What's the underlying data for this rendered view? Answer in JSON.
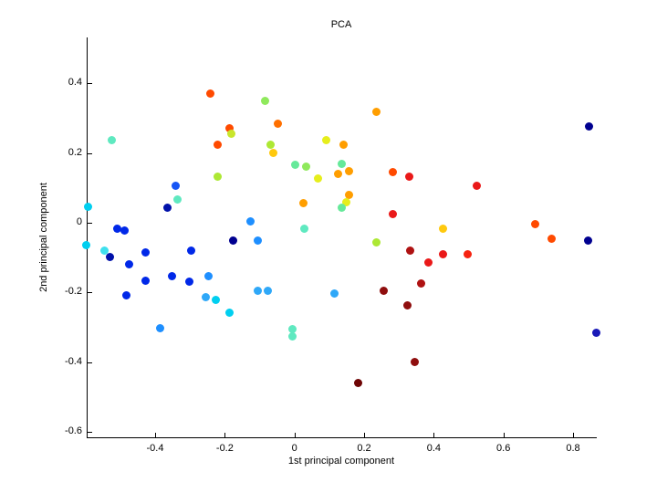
{
  "title": "PCA",
  "colors": {
    "axis": "#000000",
    "background": "#ffffff",
    "text": "#000000"
  },
  "chart_data": {
    "type": "scatter",
    "title": "PCA",
    "xlabel": "1st principal component",
    "ylabel": "2nd principal component",
    "xlim": [
      -0.594,
      0.868
    ],
    "ylim": [
      -0.615,
      0.531
    ],
    "x_ticks": [
      -0.4,
      -0.2,
      0,
      0.2,
      0.4,
      0.6,
      0.8
    ],
    "y_ticks": [
      0.4,
      0.2,
      0,
      -0.2,
      -0.4,
      -0.6
    ],
    "grid": false,
    "legend": "none",
    "colormap": "jet",
    "points": [
      [
        -0.241,
        0.369,
        "#FF4A00"
      ],
      [
        -0.084,
        0.348,
        "#8FE95C"
      ],
      [
        -0.047,
        0.285,
        "#FF7000"
      ],
      [
        -0.526,
        0.238,
        "#5FE9C0"
      ],
      [
        -0.186,
        0.272,
        "#FF4A00"
      ],
      [
        -0.181,
        0.254,
        "#C9E62C"
      ],
      [
        -0.22,
        0.225,
        "#FF4A00"
      ],
      [
        -0.068,
        0.225,
        "#ADE834"
      ],
      [
        -0.06,
        0.199,
        "#FFC90E"
      ],
      [
        0.092,
        0.238,
        "#E6EE1C"
      ],
      [
        0.141,
        0.223,
        "#FF9E00"
      ],
      [
        0.003,
        0.165,
        "#66E99A"
      ],
      [
        0.034,
        0.162,
        "#8FE95C"
      ],
      [
        0.136,
        0.168,
        "#66E99A"
      ],
      [
        0.126,
        0.141,
        "#FF9E00"
      ],
      [
        0.157,
        0.149,
        "#FF9E00"
      ],
      [
        0.068,
        0.126,
        "#E6EE1C"
      ],
      [
        -0.22,
        0.131,
        "#ADE834"
      ],
      [
        -0.34,
        0.107,
        "#1655F5"
      ],
      [
        -0.335,
        0.068,
        "#5FE9C0"
      ],
      [
        -0.364,
        0.042,
        "#0011AA"
      ],
      [
        -0.594,
        0.047,
        "#00CFF0"
      ],
      [
        -0.597,
        -0.063,
        "#00CFF0"
      ],
      [
        -0.51,
        -0.018,
        "#0028E8"
      ],
      [
        -0.489,
        -0.021,
        "#0028E8"
      ],
      [
        -0.126,
        0.003,
        "#1E8FFF"
      ],
      [
        -0.105,
        -0.052,
        "#1E8FFF"
      ],
      [
        -0.175,
        -0.05,
        "#000090"
      ],
      [
        0.026,
        0.055,
        "#FF9E00"
      ],
      [
        0.029,
        -0.016,
        "#5FE9C0"
      ],
      [
        0.157,
        0.081,
        "#FF9E00"
      ],
      [
        0.149,
        0.058,
        "#E6EE1C"
      ],
      [
        0.136,
        0.042,
        "#66E99A"
      ],
      [
        -0.545,
        -0.079,
        "#3FE0EE"
      ],
      [
        -0.531,
        -0.099,
        "#0011AA"
      ],
      [
        -0.476,
        -0.118,
        "#0028E8"
      ],
      [
        -0.427,
        -0.084,
        "#0028E8"
      ],
      [
        -0.298,
        -0.079,
        "#0028E8"
      ],
      [
        -0.427,
        -0.165,
        "#0028E8"
      ],
      [
        -0.351,
        -0.154,
        "#0028E8"
      ],
      [
        -0.301,
        -0.168,
        "#0028E8"
      ],
      [
        -0.246,
        -0.152,
        "#1E8FFF"
      ],
      [
        -0.484,
        -0.207,
        "#0028E8"
      ],
      [
        -0.254,
        -0.212,
        "#2FA8F8"
      ],
      [
        -0.225,
        -0.22,
        "#00CFF0"
      ],
      [
        -0.105,
        -0.196,
        "#2FA8F8"
      ],
      [
        -0.076,
        -0.194,
        "#2FA8F8"
      ],
      [
        0.115,
        -0.204,
        "#2FA8F8"
      ],
      [
        -0.188,
        -0.259,
        "#00CFF0"
      ],
      [
        -0.387,
        -0.301,
        "#1E8FFF"
      ],
      [
        -0.005,
        -0.306,
        "#5FE9C0"
      ],
      [
        -0.005,
        -0.327,
        "#5FE9C0"
      ],
      [
        0.236,
        0.317,
        "#FF9E00"
      ],
      [
        0.846,
        0.277,
        "#000090"
      ],
      [
        0.283,
        0.144,
        "#FF4A00"
      ],
      [
        0.33,
        0.131,
        "#EA1919"
      ],
      [
        0.524,
        0.107,
        "#EA1919"
      ],
      [
        0.283,
        0.026,
        "#EA1919"
      ],
      [
        0.427,
        -0.018,
        "#FFC90E"
      ],
      [
        0.691,
        -0.005,
        "#FF4A00"
      ],
      [
        0.738,
        -0.047,
        "#FF4A00"
      ],
      [
        0.843,
        -0.05,
        "#000090"
      ],
      [
        0.236,
        -0.055,
        "#ADE834"
      ],
      [
        0.332,
        -0.079,
        "#AF1212"
      ],
      [
        0.427,
        -0.089,
        "#EA1919"
      ],
      [
        0.497,
        -0.089,
        "#F62310"
      ],
      [
        0.385,
        -0.113,
        "#EA1919"
      ],
      [
        0.364,
        -0.175,
        "#AF1212"
      ],
      [
        0.257,
        -0.196,
        "#8F0E0E"
      ],
      [
        0.325,
        -0.236,
        "#8F0E0E"
      ],
      [
        0.866,
        -0.314,
        "#1A1AB8"
      ],
      [
        0.346,
        -0.398,
        "#8F0E0E"
      ],
      [
        0.183,
        -0.458,
        "#6E0505"
      ]
    ]
  }
}
